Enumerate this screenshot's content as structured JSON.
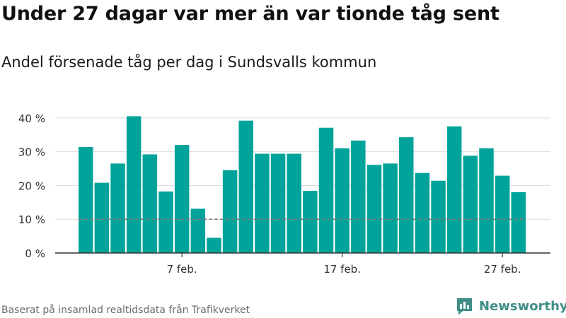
{
  "header": {
    "title": "Under 27 dagar var mer än var tionde tåg sent",
    "subtitle": "Andel försenade tåg per dag i Sundsvalls kommun"
  },
  "footer": {
    "source": "Baserat på insamlad realtidsdata från Trafikverket",
    "brand": "Newsworthy"
  },
  "colors": {
    "bar": "#00a39a",
    "reference_line": "#7a7a7a",
    "grid": "#dddddd",
    "axis": "#333333",
    "brand": "#3f8f87"
  },
  "chart_data": {
    "type": "bar",
    "title": "Under 27 dagar var mer än var tionde tåg sent",
    "subtitle": "Andel försenade tåg per dag i Sundsvalls kommun",
    "xlabel": "",
    "ylabel": "",
    "categories": [
      "1 feb.",
      "2 feb.",
      "3 feb.",
      "4 feb.",
      "5 feb.",
      "6 feb.",
      "7 feb.",
      "8 feb.",
      "9 feb.",
      "10 feb.",
      "11 feb.",
      "12 feb.",
      "13 feb.",
      "14 feb.",
      "15 feb.",
      "16 feb.",
      "17 feb.",
      "18 feb.",
      "19 feb.",
      "20 feb.",
      "21 feb.",
      "22 feb.",
      "23 feb.",
      "24 feb.",
      "25 feb.",
      "26 feb.",
      "27 feb.",
      "28 feb."
    ],
    "values": [
      31.4,
      20.8,
      26.5,
      40.5,
      29.2,
      18.2,
      32.0,
      13.1,
      4.5,
      24.5,
      39.2,
      29.4,
      29.4,
      29.4,
      18.4,
      37.1,
      31.0,
      33.3,
      26.1,
      26.5,
      34.3,
      23.7,
      21.4,
      37.5,
      28.8,
      31.0,
      22.9,
      18.0
    ],
    "reference_line": 10,
    "ylim": [
      0,
      45
    ],
    "yticks": [
      0,
      10,
      20,
      30,
      40
    ],
    "ytick_labels": [
      "0 %",
      "10 %",
      "20 %",
      "30 %",
      "40 %"
    ],
    "xticks": [
      "7 feb.",
      "17 feb.",
      "27 feb."
    ],
    "grid": true,
    "legend": "none"
  }
}
